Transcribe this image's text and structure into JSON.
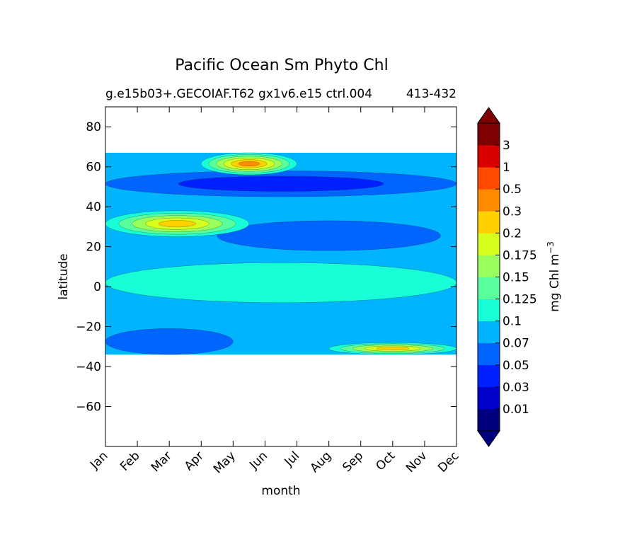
{
  "chart_data": {
    "type": "heatmap",
    "title": "Pacific Ocean Sm Phyto Chl",
    "subtitle": "g.e15b03+.GECOIAF.T62 gx1v6.e15 ctrl.004",
    "subtitle_overlap": "413-432",
    "xlabel": "month",
    "ylabel": "latitude",
    "x_ticks": [
      "Jan",
      "Feb",
      "Mar",
      "Apr",
      "May",
      "Jun",
      "Jul",
      "Aug",
      "Sep",
      "Oct",
      "Nov",
      "Dec"
    ],
    "x_range": [
      0,
      11
    ],
    "y_ticks": [
      80,
      60,
      40,
      20,
      0,
      -20,
      -40,
      -60
    ],
    "y_range": [
      -80,
      90
    ],
    "data_lat_range": [
      -34,
      67
    ],
    "colorbar": {
      "label": "mg Chl m",
      "label_sup": "−3",
      "levels": [
        "0.01",
        "0.03",
        "0.05",
        "0.07",
        "0.1",
        "0.125",
        "0.15",
        "0.175",
        "0.2",
        "0.3",
        "0.5",
        "1",
        "3"
      ],
      "colors": [
        "#00007f",
        "#0000c8",
        "#0020ff",
        "#0064ff",
        "#00b4ff",
        "#18ffd7",
        "#5aff9d",
        "#99ff5d",
        "#d6ff1f",
        "#ffd100",
        "#ff8a00",
        "#ff4a00",
        "#d90000",
        "#7f0000"
      ],
      "extend": "both"
    },
    "regions": [
      {
        "name": "north-band-dark",
        "month_range": [
          0,
          11
        ],
        "lat_range": [
          45,
          58
        ],
        "level": "0.03"
      },
      {
        "name": "subtropical-north-low",
        "month_range": [
          3.5,
          10.5
        ],
        "lat_range": [
          18,
          33
        ],
        "level": "0.05"
      },
      {
        "name": "kuroshio-bloom",
        "month_range": [
          0,
          4.5
        ],
        "lat_range": [
          25,
          38
        ],
        "level": "0.2"
      },
      {
        "name": "subarctic-spring-bloom",
        "month_range": [
          3,
          6
        ],
        "lat_range": [
          56,
          67
        ],
        "level": "0.3"
      },
      {
        "name": "equatorial-band",
        "month_range": [
          0,
          11
        ],
        "lat_range": [
          -8,
          12
        ],
        "level": "0.1"
      },
      {
        "name": "southern-gyre-low",
        "month_range": [
          0,
          4
        ],
        "lat_range": [
          -34,
          -21
        ],
        "level": "0.05"
      },
      {
        "name": "southern-subtropical-bloom",
        "month_range": [
          7,
          11
        ],
        "lat_range": [
          -34,
          -28
        ],
        "level": "0.2"
      }
    ]
  }
}
